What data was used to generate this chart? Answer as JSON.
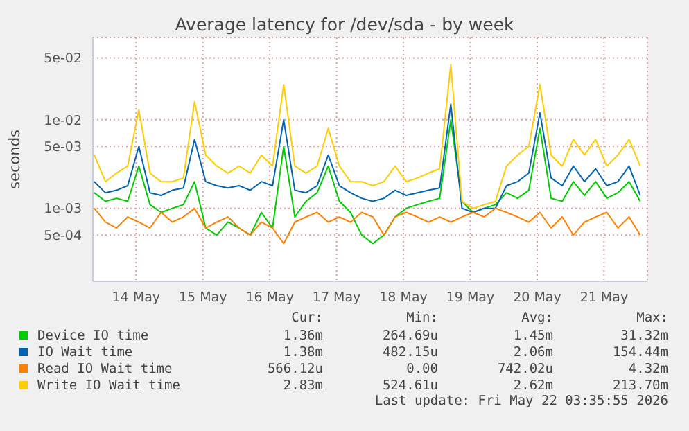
{
  "chart_data": {
    "type": "line",
    "title": "Average latency for /dev/sda - by week",
    "ylabel": "seconds",
    "log": true,
    "grid": true,
    "legend": "bottom",
    "marker": "none",
    "x": [
      "2026-05-13T21:00",
      "2026-05-14T01:00",
      "2026-05-14T05:00",
      "2026-05-14T09:00",
      "2026-05-14T13:00",
      "2026-05-14T17:00",
      "2026-05-14T21:00",
      "2026-05-15T01:00",
      "2026-05-15T05:00",
      "2026-05-15T09:00",
      "2026-05-15T13:00",
      "2026-05-15T17:00",
      "2026-05-15T21:00",
      "2026-05-16T01:00",
      "2026-05-16T05:00",
      "2026-05-16T09:00",
      "2026-05-16T13:00",
      "2026-05-16T17:00",
      "2026-05-16T21:00",
      "2026-05-17T01:00",
      "2026-05-17T05:00",
      "2026-05-17T09:00",
      "2026-05-17T13:00",
      "2026-05-17T17:00",
      "2026-05-17T21:00",
      "2026-05-18T01:00",
      "2026-05-18T05:00",
      "2026-05-18T09:00",
      "2026-05-18T13:00",
      "2026-05-18T17:00",
      "2026-05-18T21:00",
      "2026-05-19T01:00",
      "2026-05-19T05:00",
      "2026-05-19T09:00",
      "2026-05-19T13:00",
      "2026-05-19T17:00",
      "2026-05-19T21:00",
      "2026-05-20T01:00",
      "2026-05-20T05:00",
      "2026-05-20T09:00",
      "2026-05-20T13:00",
      "2026-05-20T17:00",
      "2026-05-20T21:00",
      "2026-05-21T01:00",
      "2026-05-21T05:00",
      "2026-05-21T09:00",
      "2026-05-21T13:00",
      "2026-05-21T17:00",
      "2026-05-21T21:00",
      "2026-05-22T01:00"
    ],
    "xlim": [
      "2026-05-13T20:30",
      "2026-05-22T03:35"
    ],
    "xticks": [
      {
        "value": "2026-05-14T12:00",
        "label": "14 May"
      },
      {
        "value": "2026-05-15T12:00",
        "label": "15 May"
      },
      {
        "value": "2026-05-16T12:00",
        "label": "16 May"
      },
      {
        "value": "2026-05-17T12:00",
        "label": "17 May"
      },
      {
        "value": "2026-05-18T12:00",
        "label": "18 May"
      },
      {
        "value": "2026-05-19T12:00",
        "label": "19 May"
      },
      {
        "value": "2026-05-20T12:00",
        "label": "20 May"
      },
      {
        "value": "2026-05-21T12:00",
        "label": "21 May"
      }
    ],
    "ylim": [
      0.00015,
      0.085
    ],
    "yticks": [
      {
        "value": 0.0005,
        "label": "5e-04"
      },
      {
        "value": 0.001,
        "label": "1e-03"
      },
      {
        "value": 0.005,
        "label": "5e-03"
      },
      {
        "value": 0.01,
        "label": "1e-02"
      },
      {
        "value": 0.05,
        "label": "5e-02"
      }
    ],
    "series": [
      {
        "name": "Device IO time",
        "color": "#00cc00",
        "values": [
          0.0015,
          0.0012,
          0.0013,
          0.0012,
          0.003,
          0.0011,
          0.0009,
          0.001,
          0.0011,
          0.002,
          0.0006,
          0.0005,
          0.0007,
          0.0006,
          0.0005,
          0.0009,
          0.0006,
          0.005,
          0.0008,
          0.0012,
          0.0015,
          0.003,
          0.0012,
          0.0009,
          0.0005,
          0.0004,
          0.0005,
          0.0008,
          0.001,
          0.0011,
          0.0012,
          0.0013,
          0.01,
          0.0012,
          0.0009,
          0.001,
          0.0011,
          0.0015,
          0.0013,
          0.0016,
          0.008,
          0.0013,
          0.0012,
          0.002,
          0.0014,
          0.002,
          0.0013,
          0.0015,
          0.002,
          0.0012
        ]
      },
      {
        "name": "IO Wait time",
        "color": "#0066b3",
        "values": [
          0.002,
          0.0015,
          0.0016,
          0.0018,
          0.005,
          0.0015,
          0.0014,
          0.0016,
          0.0017,
          0.006,
          0.002,
          0.0018,
          0.0017,
          0.0018,
          0.0016,
          0.002,
          0.0018,
          0.01,
          0.0016,
          0.0015,
          0.0018,
          0.004,
          0.0018,
          0.0015,
          0.0013,
          0.0012,
          0.0013,
          0.0016,
          0.0014,
          0.0015,
          0.0016,
          0.0017,
          0.015,
          0.001,
          0.0009,
          0.001,
          0.001,
          0.0018,
          0.002,
          0.0025,
          0.012,
          0.0022,
          0.0018,
          0.003,
          0.002,
          0.0028,
          0.0018,
          0.002,
          0.003,
          0.0014
        ]
      },
      {
        "name": "Read IO Wait time",
        "color": "#ff8000",
        "values": [
          0.001,
          0.0007,
          0.0006,
          0.0008,
          0.0007,
          0.0006,
          0.0009,
          0.0007,
          0.0008,
          0.001,
          0.0006,
          0.0007,
          0.0008,
          0.0006,
          0.0005,
          0.0007,
          0.0006,
          0.0004,
          0.0007,
          0.0008,
          0.0009,
          0.0007,
          0.0008,
          0.0007,
          0.0009,
          0.0008,
          0.0005,
          0.0008,
          0.0009,
          0.0008,
          0.0007,
          0.0008,
          0.0007,
          0.0008,
          0.0009,
          0.0008,
          0.001,
          0.0009,
          0.0008,
          0.0007,
          0.0009,
          0.0006,
          0.0008,
          0.0005,
          0.0007,
          0.0008,
          0.0009,
          0.0006,
          0.0008,
          0.0005
        ]
      },
      {
        "name": "Write IO Wait time",
        "color": "#ffcc00",
        "values": [
          0.004,
          0.002,
          0.0025,
          0.003,
          0.013,
          0.0025,
          0.002,
          0.002,
          0.0022,
          0.016,
          0.004,
          0.003,
          0.0025,
          0.003,
          0.0025,
          0.004,
          0.003,
          0.025,
          0.003,
          0.0025,
          0.003,
          0.008,
          0.003,
          0.002,
          0.002,
          0.0018,
          0.002,
          0.003,
          0.002,
          0.0022,
          0.0025,
          0.0028,
          0.042,
          0.0012,
          0.001,
          0.0011,
          0.0012,
          0.003,
          0.004,
          0.005,
          0.025,
          0.004,
          0.003,
          0.006,
          0.004,
          0.006,
          0.003,
          0.004,
          0.006,
          0.003
        ]
      }
    ],
    "annotations": [
      "Cur:",
      "Min:",
      "Avg:",
      "Max:",
      "1.36m",
      "264.69u",
      "1.45m",
      "31.32m",
      "1.38m",
      "482.15u",
      "2.06m",
      "154.44m",
      "566.12u",
      "0.00",
      "742.02u",
      "4.32m",
      "2.83m",
      "524.61u",
      "2.62m",
      "213.70m",
      "Last update: Fri May 22 03:35:55 2026"
    ]
  }
}
